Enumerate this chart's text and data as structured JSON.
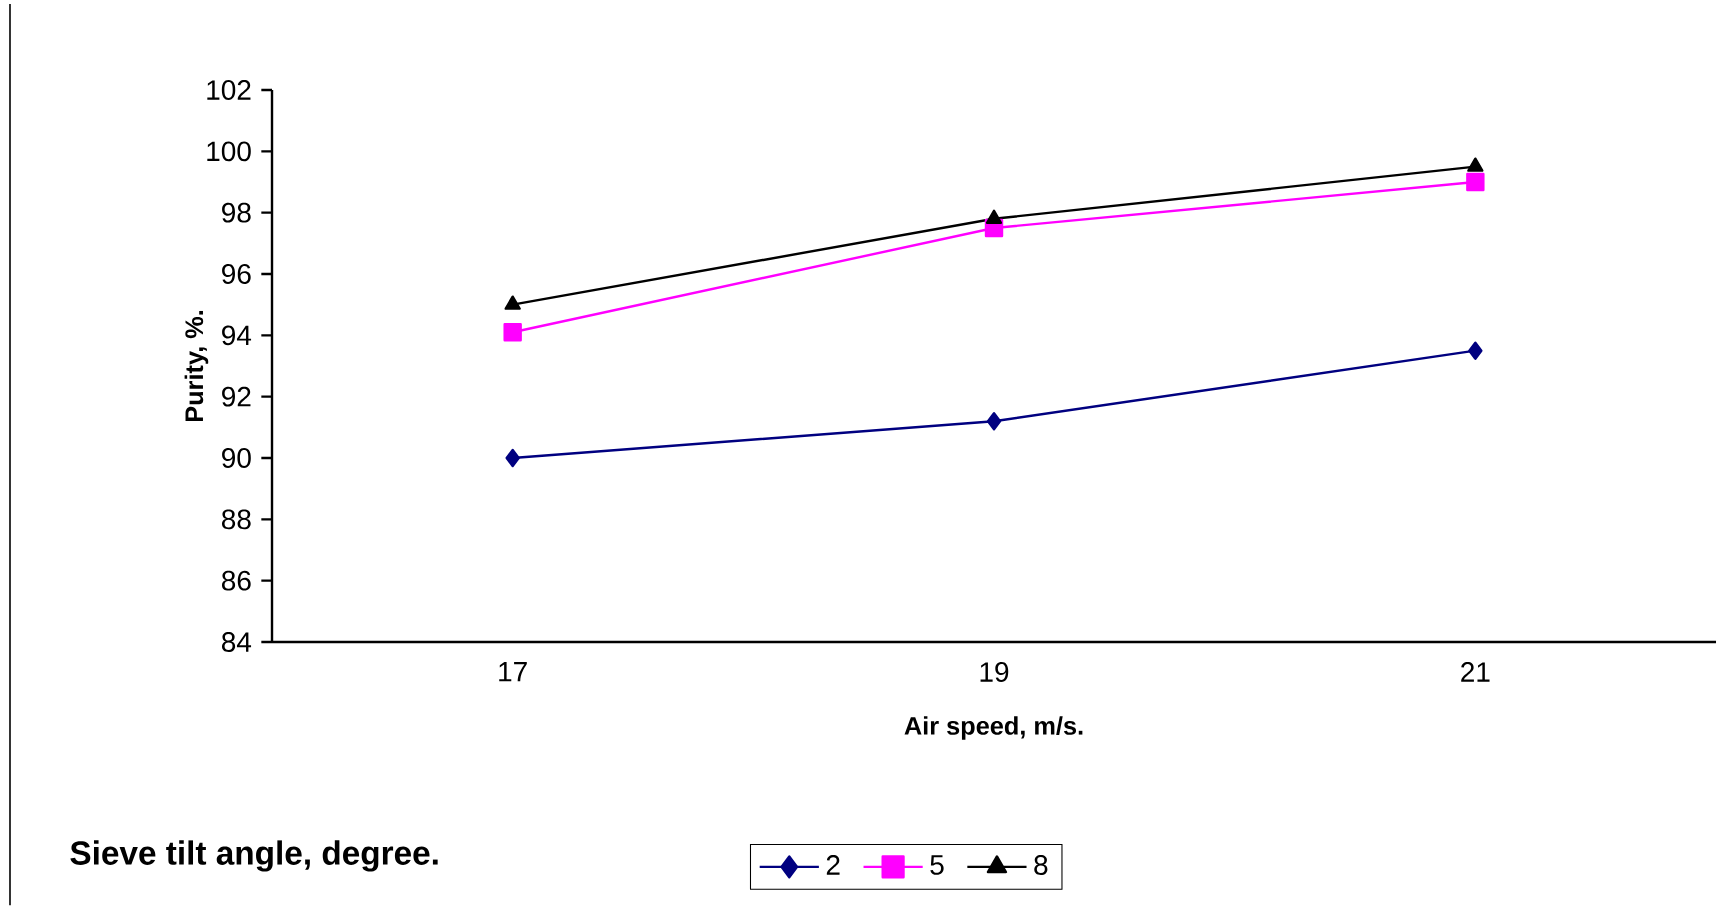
{
  "chart_data": {
    "type": "line",
    "xlabel": "Air speed, m/s.",
    "ylabel": "Purity, %.",
    "legend_title": "Sieve tilt angle, degree.",
    "categories": [
      "17",
      "19",
      "21"
    ],
    "series": [
      {
        "name": "2",
        "color": "#000080",
        "marker": "diamond",
        "values": [
          90,
          91.2,
          93.5
        ]
      },
      {
        "name": "5",
        "color": "#ff00ff",
        "marker": "square",
        "values": [
          94.1,
          97.5,
          99
        ]
      },
      {
        "name": "8",
        "color": "#000000",
        "marker": "triangle",
        "values": [
          95,
          97.8,
          99.5
        ]
      }
    ],
    "ylim": [
      84,
      102
    ],
    "yticks": [
      84,
      86,
      88,
      90,
      92,
      94,
      96,
      98,
      100,
      102
    ],
    "legend": "bottom",
    "grid": false,
    "line_style": "solid"
  }
}
